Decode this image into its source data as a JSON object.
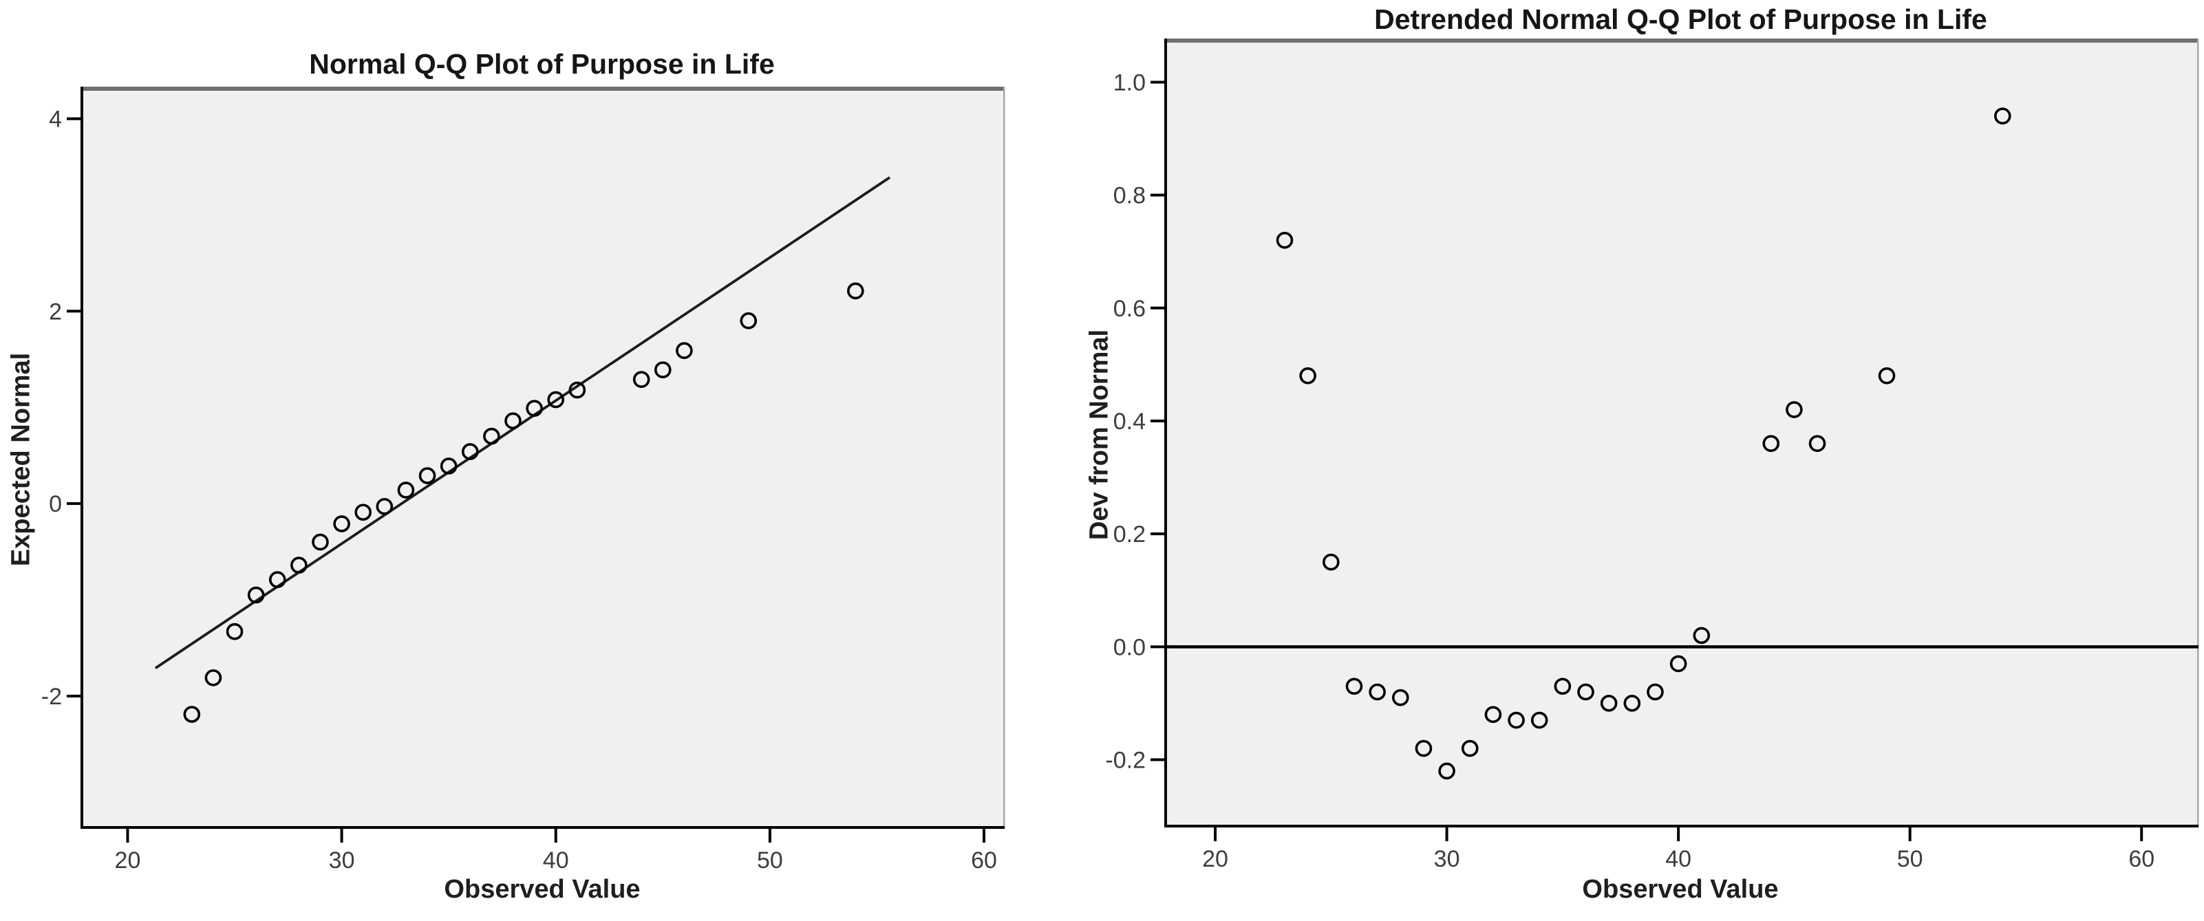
{
  "colors": {
    "page_bg": "#ffffff",
    "plot_bg": "#f0f0f0",
    "axis_line": "#000000",
    "marker_stroke": "#000000",
    "trend_line": "#1c1c1c",
    "tick_text": "#3d3d3d",
    "title_text": "#161616",
    "frame_top": "#707070",
    "frame_right": "#a8a8a8"
  },
  "chart_data": [
    {
      "type": "scatter",
      "title": "Normal Q-Q Plot of Purpose in Life",
      "xlabel": "Observed Value",
      "ylabel": "Expected Normal",
      "xlim": [
        17.8,
        60.9
      ],
      "ylim": [
        -3.38,
        4.29
      ],
      "xticks": [
        20,
        30,
        40,
        50,
        60
      ],
      "xtick_labels": [
        "20",
        "30",
        "40",
        "50",
        "60"
      ],
      "yticks": [
        4,
        2,
        0,
        -2
      ],
      "ytick_labels": [
        "4",
        "2",
        "0",
        "-2"
      ],
      "grid": false,
      "legend": "none",
      "marker": "open-circle",
      "points": [
        [
          23,
          -2.19
        ],
        [
          24,
          -1.81
        ],
        [
          25,
          -1.33
        ],
        [
          26,
          -0.95
        ],
        [
          27,
          -0.79
        ],
        [
          28,
          -0.64
        ],
        [
          29,
          -0.4
        ],
        [
          30,
          -0.21
        ],
        [
          31,
          -0.09
        ],
        [
          32,
          -0.03
        ],
        [
          33,
          0.14
        ],
        [
          34,
          0.29
        ],
        [
          35,
          0.39
        ],
        [
          36,
          0.54
        ],
        [
          37,
          0.7
        ],
        [
          38,
          0.86
        ],
        [
          39,
          0.99
        ],
        [
          40,
          1.08
        ],
        [
          41,
          1.18
        ],
        [
          44,
          1.29
        ],
        [
          45,
          1.39
        ],
        [
          46,
          1.59
        ],
        [
          49,
          1.9
        ],
        [
          54,
          2.21
        ]
      ],
      "ref_line": {
        "x1": 21.3,
        "y1": -1.71,
        "x2": 55.6,
        "y2": 3.39
      }
    },
    {
      "type": "scatter",
      "title": "Detrended Normal Q-Q Plot of Purpose in Life",
      "xlabel": "Observed Value",
      "ylabel": "Dev from Normal",
      "xlim": [
        17.8,
        62.4
      ],
      "ylim": [
        -0.32,
        1.07
      ],
      "xticks": [
        20,
        30,
        40,
        50,
        60
      ],
      "xtick_labels": [
        "20",
        "30",
        "40",
        "50",
        "60"
      ],
      "yticks": [
        1.0,
        0.8,
        0.6,
        0.4,
        0.2,
        0.0,
        -0.2
      ],
      "ytick_labels": [
        "1.0",
        "0.8",
        "0.6",
        "0.4",
        "0.2",
        "0.0",
        "-0.2"
      ],
      "grid": false,
      "legend": "none",
      "marker": "open-circle",
      "points": [
        [
          23,
          0.72
        ],
        [
          24,
          0.48
        ],
        [
          25,
          0.15
        ],
        [
          26,
          -0.07
        ],
        [
          27,
          -0.08
        ],
        [
          28,
          -0.09
        ],
        [
          29,
          -0.18
        ],
        [
          30,
          -0.22
        ],
        [
          31,
          -0.18
        ],
        [
          32,
          -0.12
        ],
        [
          33,
          -0.13
        ],
        [
          34,
          -0.13
        ],
        [
          35,
          -0.07
        ],
        [
          36,
          -0.08
        ],
        [
          37,
          -0.1
        ],
        [
          38,
          -0.1
        ],
        [
          39,
          -0.08
        ],
        [
          40,
          -0.03
        ],
        [
          41,
          0.02
        ],
        [
          44,
          0.36
        ],
        [
          45,
          0.42
        ],
        [
          46,
          0.36
        ],
        [
          49,
          0.48
        ],
        [
          54,
          0.94
        ]
      ],
      "ref_hline": 0.0
    }
  ]
}
